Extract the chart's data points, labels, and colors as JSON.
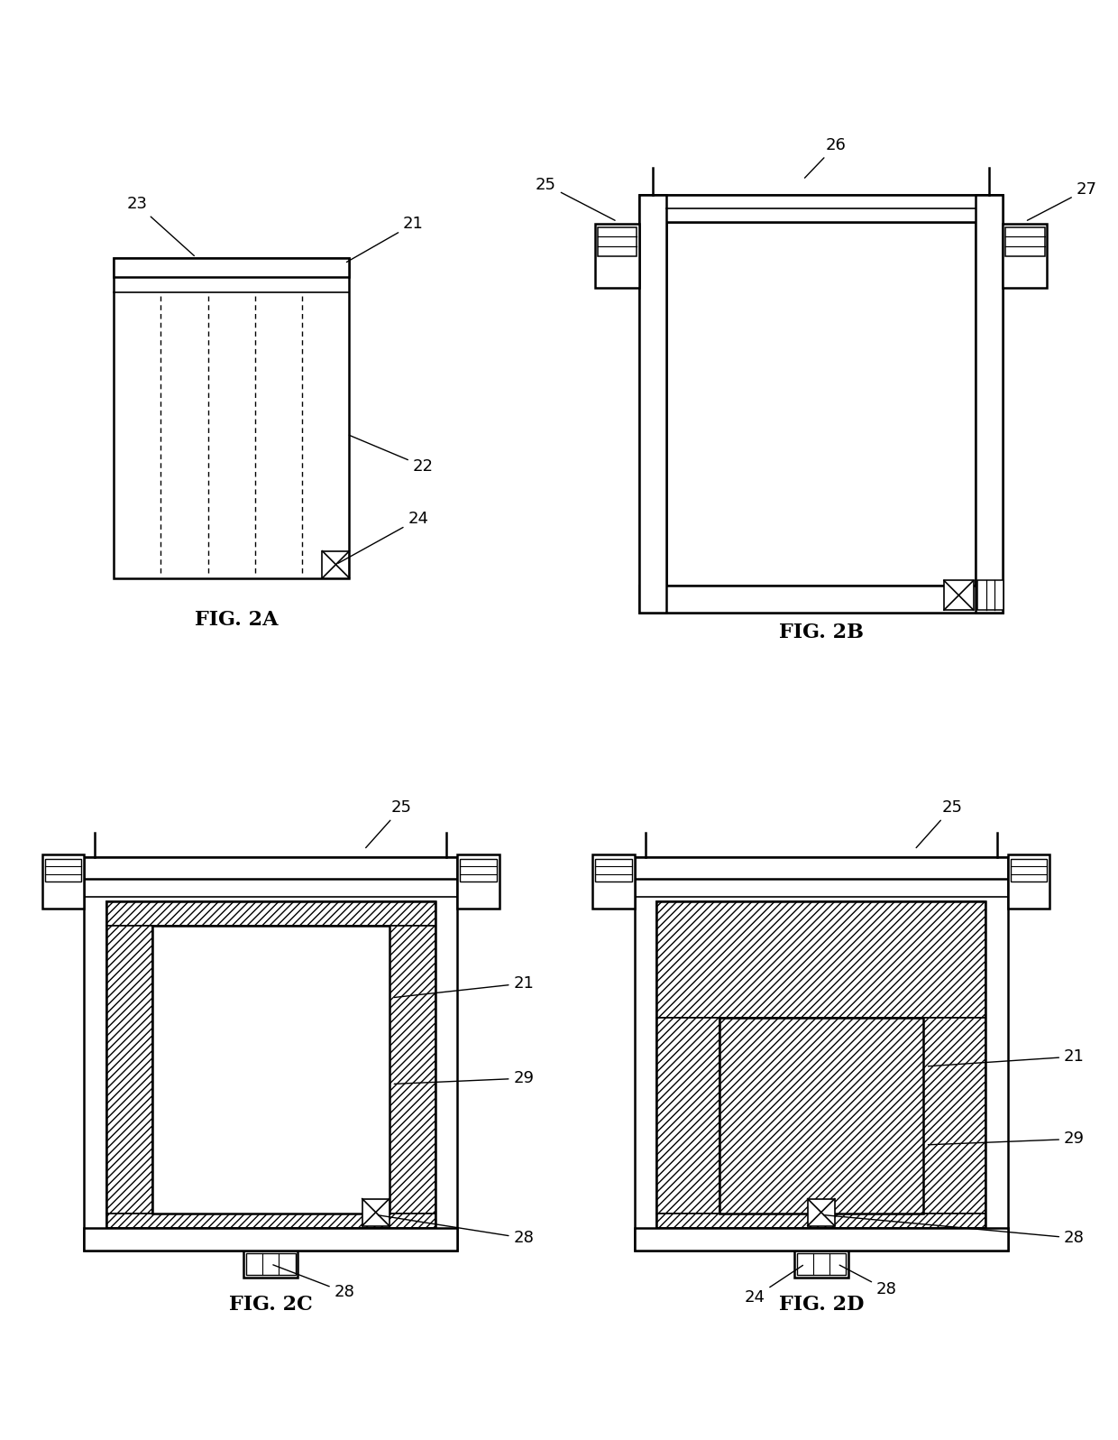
{
  "bg_color": "#ffffff",
  "line_color": "#000000",
  "fig_labels": [
    "FIG. 2A",
    "FIG. 2B",
    "FIG. 2C",
    "FIG. 2D"
  ],
  "label_fontsize": 16,
  "annotation_fontsize": 13
}
